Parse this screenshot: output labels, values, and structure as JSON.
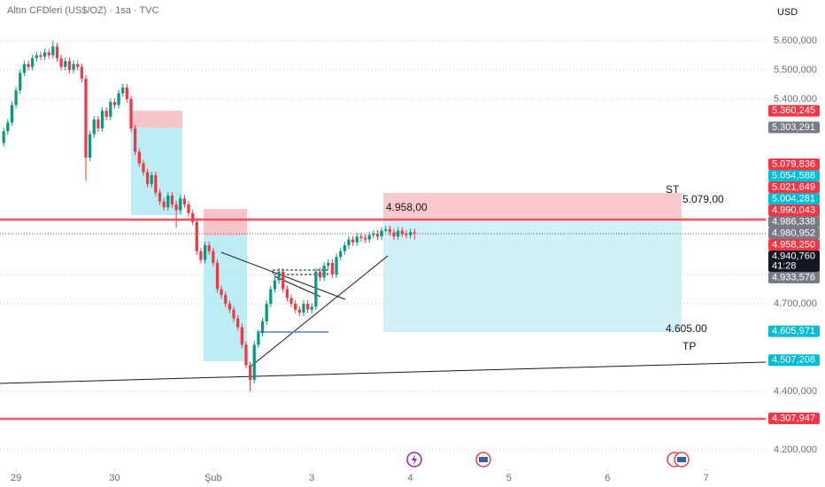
{
  "chart_data": {
    "type": "candlestick",
    "title": "Altın CFDleri (US$/OZ) · 1sa · TVC",
    "currency": "USD",
    "up_color": "#089981",
    "down_color": "#f23645",
    "xlim": [
      -3.9,
      182.5
    ],
    "ylim": [
      4134,
      5739
    ],
    "xticks": [
      {
        "value": 0,
        "label": "29"
      },
      {
        "value": 24,
        "label": "30"
      },
      {
        "value": 48,
        "label": "Şub"
      },
      {
        "value": 72,
        "label": "3"
      },
      {
        "value": 96,
        "label": "4"
      },
      {
        "value": 120,
        "label": "5"
      },
      {
        "value": 144,
        "label": "6"
      },
      {
        "value": 168,
        "label": "7"
      }
    ],
    "yticks": [
      {
        "value": 5600,
        "label": "5.600,000"
      },
      {
        "value": 5500,
        "label": "5.500,000"
      },
      {
        "value": 5400,
        "label": "5.400,000"
      },
      {
        "value": 4800,
        "label": "4.800,000"
      },
      {
        "value": 4700,
        "label": "4.700,000"
      },
      {
        "value": 4400,
        "label": "4.400,000"
      },
      {
        "value": 4200,
        "label": "4.200,000"
      }
    ],
    "grid": true,
    "x": [
      -3,
      -2,
      -1,
      0,
      1,
      2,
      3,
      4,
      5,
      6,
      7,
      8,
      9,
      10,
      11,
      12,
      13,
      14,
      15,
      16,
      17,
      18,
      19,
      20,
      21,
      22,
      23,
      24,
      25,
      26,
      27,
      28,
      29,
      30,
      31,
      32,
      33,
      34,
      35,
      36,
      37,
      38,
      39,
      40,
      41,
      42,
      43,
      44,
      45,
      46,
      47,
      48,
      49,
      50,
      51,
      52,
      53,
      54,
      55,
      56,
      57,
      58,
      59,
      60,
      61,
      62,
      63,
      64,
      65,
      66,
      67,
      68,
      69,
      70,
      71,
      72,
      73,
      74,
      75,
      76,
      77,
      78,
      79,
      80,
      81,
      82,
      83,
      84,
      85,
      86,
      87,
      88,
      89,
      90,
      91,
      92,
      93,
      94,
      95,
      96,
      97
    ],
    "ohlc": [
      [
        5250,
        5302,
        5238,
        5290
      ],
      [
        5290,
        5332,
        5278,
        5320
      ],
      [
        5320,
        5392,
        5308,
        5380
      ],
      [
        5380,
        5442,
        5368,
        5430
      ],
      [
        5430,
        5502,
        5418,
        5490
      ],
      [
        5490,
        5532,
        5478,
        5520
      ],
      [
        5520,
        5532,
        5498,
        5510
      ],
      [
        5510,
        5552,
        5498,
        5540
      ],
      [
        5540,
        5562,
        5528,
        5550
      ],
      [
        5550,
        5562,
        5533,
        5545
      ],
      [
        5545,
        5572,
        5533,
        5560
      ],
      [
        5560,
        5572,
        5538,
        5550
      ],
      [
        5550,
        5600,
        5538,
        5580
      ],
      [
        5580,
        5592,
        5528,
        5540
      ],
      [
        5540,
        5552,
        5498,
        5510
      ],
      [
        5510,
        5542,
        5498,
        5530
      ],
      [
        5530,
        5542,
        5488,
        5500
      ],
      [
        5500,
        5532,
        5488,
        5520
      ],
      [
        5520,
        5532,
        5498,
        5510
      ],
      [
        5510,
        5522,
        5458,
        5470
      ],
      [
        5470,
        5482,
        5120,
        5200
      ],
      [
        5200,
        5292,
        5188,
        5280
      ],
      [
        5280,
        5342,
        5268,
        5330
      ],
      [
        5330,
        5342,
        5288,
        5300
      ],
      [
        5300,
        5372,
        5288,
        5360
      ],
      [
        5360,
        5372,
        5328,
        5340
      ],
      [
        5340,
        5402,
        5328,
        5390
      ],
      [
        5390,
        5402,
        5368,
        5380
      ],
      [
        5380,
        5432,
        5368,
        5420
      ],
      [
        5420,
        5452,
        5408,
        5440
      ],
      [
        5440,
        5452,
        5388,
        5400
      ],
      [
        5400,
        5412,
        5288,
        5300
      ],
      [
        5300,
        5312,
        5208,
        5220
      ],
      [
        5220,
        5232,
        5168,
        5180
      ],
      [
        5180,
        5192,
        5138,
        5150
      ],
      [
        5150,
        5162,
        5098,
        5110
      ],
      [
        5110,
        5152,
        5098,
        5140
      ],
      [
        5140,
        5152,
        5068,
        5080
      ],
      [
        5080,
        5092,
        5038,
        5050
      ],
      [
        5050,
        5062,
        5018,
        5030
      ],
      [
        5030,
        5082,
        5018,
        5070
      ],
      [
        5070,
        5082,
        5028,
        5040
      ],
      [
        5040,
        5052,
        4960,
        5020
      ],
      [
        5020,
        5072,
        5008,
        5060
      ],
      [
        5060,
        5072,
        5028,
        5040
      ],
      [
        5040,
        5052,
        4998,
        5010
      ],
      [
        5010,
        5022,
        4968,
        4980
      ],
      [
        4980,
        4992,
        4868,
        4880
      ],
      [
        4880,
        4892,
        4838,
        4850
      ],
      [
        4850,
        4912,
        4838,
        4900
      ],
      [
        4900,
        4912,
        4868,
        4880
      ],
      [
        4880,
        4892,
        4828,
        4840
      ],
      [
        4840,
        4852,
        4738,
        4750
      ],
      [
        4750,
        4762,
        4718,
        4730
      ],
      [
        4730,
        4742,
        4688,
        4700
      ],
      [
        4700,
        4712,
        4668,
        4680
      ],
      [
        4680,
        4692,
        4638,
        4650
      ],
      [
        4650,
        4662,
        4608,
        4620
      ],
      [
        4620,
        4632,
        4548,
        4560
      ],
      [
        4560,
        4572,
        4478,
        4490
      ],
      [
        4490,
        4502,
        4400,
        4440
      ],
      [
        4440,
        4572,
        4428,
        4560
      ],
      [
        4560,
        4612,
        4548,
        4600
      ],
      [
        4600,
        4652,
        4588,
        4640
      ],
      [
        4640,
        4712,
        4628,
        4700
      ],
      [
        4700,
        4762,
        4688,
        4750
      ],
      [
        4750,
        4792,
        4738,
        4780
      ],
      [
        4780,
        4822,
        4768,
        4810
      ],
      [
        4810,
        4822,
        4738,
        4750
      ],
      [
        4750,
        4762,
        4708,
        4720
      ],
      [
        4720,
        4732,
        4688,
        4700
      ],
      [
        4700,
        4712,
        4668,
        4680
      ],
      [
        4680,
        4692,
        4658,
        4670
      ],
      [
        4670,
        4712,
        4658,
        4700
      ],
      [
        4700,
        4712,
        4668,
        4680
      ],
      [
        4680,
        4702,
        4668,
        4690
      ],
      [
        4690,
        4822,
        4678,
        4810
      ],
      [
        4810,
        4822,
        4778,
        4790
      ],
      [
        4790,
        4842,
        4778,
        4830
      ],
      [
        4830,
        4852,
        4818,
        4840
      ],
      [
        4840,
        4852,
        4788,
        4800
      ],
      [
        4800,
        4872,
        4788,
        4860
      ],
      [
        4860,
        4892,
        4848,
        4880
      ],
      [
        4880,
        4912,
        4868,
        4900
      ],
      [
        4900,
        4932,
        4888,
        4920
      ],
      [
        4920,
        4932,
        4898,
        4910
      ],
      [
        4910,
        4942,
        4898,
        4930
      ],
      [
        4930,
        4942,
        4913,
        4925
      ],
      [
        4925,
        4937,
        4908,
        4920
      ],
      [
        4920,
        4947,
        4908,
        4935
      ],
      [
        4935,
        4952,
        4923,
        4940
      ],
      [
        4940,
        4952,
        4918,
        4930
      ],
      [
        4930,
        4962,
        4918,
        4950
      ],
      [
        4950,
        4967,
        4943,
        4955
      ],
      [
        4955,
        4967,
        4933,
        4945
      ],
      [
        4945,
        4957,
        4918,
        4930
      ],
      [
        4930,
        4962,
        4918,
        4950
      ],
      [
        4950,
        4962,
        4928,
        4940
      ],
      [
        4940,
        4952,
        4923,
        4935
      ],
      [
        4935,
        4957,
        4923,
        4945
      ],
      [
        4945,
        4957,
        4920,
        4940.76
      ]
    ],
    "price_labels": [
      {
        "value": 5360.245,
        "label": "5.360,245",
        "color": "#f23645"
      },
      {
        "value": 5303.291,
        "label": "5.303,291",
        "color": "#787b86"
      },
      {
        "value": 5079.836,
        "label": "5.079,836",
        "color": "#f23645"
      },
      {
        "value": 5054.588,
        "label": "5.054,588",
        "color": "#00bcd4"
      },
      {
        "value": 5021.649,
        "label": "5.021,649",
        "color": "#f23645"
      },
      {
        "value": 5004.281,
        "label": "5.004,281",
        "color": "#00bcd4"
      },
      {
        "value": 4990.043,
        "label": "4.990,043",
        "color": "#f23645"
      },
      {
        "value": 4986.338,
        "label": "4.986,338",
        "color": "#787b86"
      },
      {
        "value": 4980.952,
        "label": "4.980,952",
        "color": "#787b86"
      },
      {
        "value": 4958.25,
        "label": "4.958,250",
        "color": "#f23645"
      },
      {
        "value": 4940.76,
        "label": "4.940,760",
        "color": "#131722",
        "countdown": "41:28"
      },
      {
        "value": 4933.576,
        "label": "4.933,576",
        "color": "#787b86"
      },
      {
        "value": 4605.971,
        "label": "4.605,971",
        "color": "#00bcd4"
      },
      {
        "value": 4507.208,
        "label": "4.507,208",
        "color": "#00bcd4"
      },
      {
        "value": 4307.947,
        "label": "4.307,947",
        "color": "#f23645"
      }
    ],
    "annotations": {
      "entry": "4.958,00",
      "stop_tag": "ST",
      "stop": "5.079,00",
      "target": "4.605.00",
      "target_tag": "TP"
    }
  }
}
